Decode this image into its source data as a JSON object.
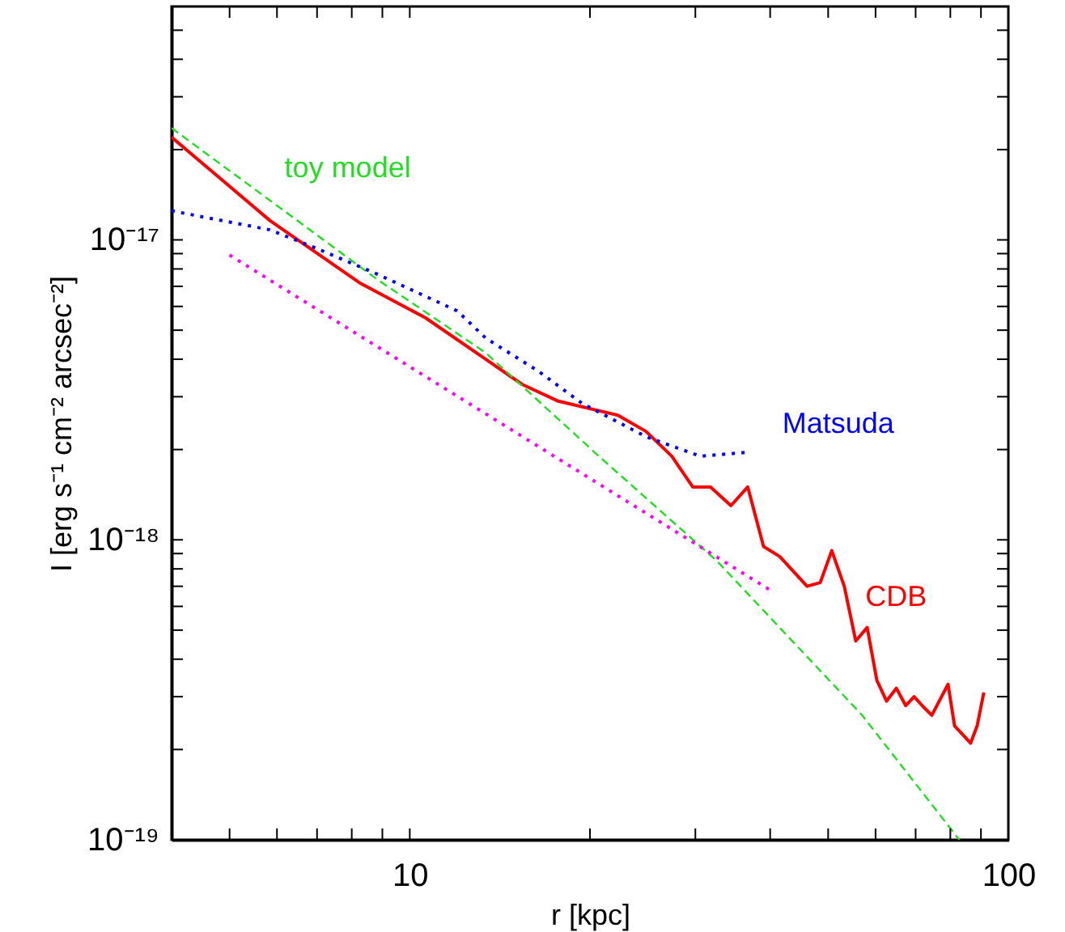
{
  "chart_data": {
    "type": "line",
    "xlabel": "r [kpc]",
    "ylabel": "I [erg s⁻¹ cm⁻² arcsec⁻²]",
    "log": "xy",
    "grid": false,
    "marker": "none",
    "xlim": [
      4,
      100
    ],
    "ylim": [
      1e-19,
      6e-17
    ],
    "xticks": [
      {
        "value": 4,
        "label": null
      },
      {
        "value": 5,
        "label": null
      },
      {
        "value": 6,
        "label": null
      },
      {
        "value": 7,
        "label": null
      },
      {
        "value": 8,
        "label": null
      },
      {
        "value": 9,
        "label": null
      },
      10,
      {
        "value": 20,
        "label": null
      },
      {
        "value": 30,
        "label": null
      },
      {
        "value": 40,
        "label": null
      },
      {
        "value": 50,
        "label": null
      },
      {
        "value": 60,
        "label": null
      },
      {
        "value": 70,
        "label": null
      },
      {
        "value": 80,
        "label": null
      },
      {
        "value": 90,
        "label": null
      },
      100
    ],
    "yticks": [
      {
        "value": 1e-19,
        "label": "10⁻¹⁹"
      },
      {
        "value": 2e-19,
        "label": null
      },
      {
        "value": 3e-19,
        "label": null
      },
      {
        "value": 4e-19,
        "label": null
      },
      {
        "value": 5e-19,
        "label": null
      },
      {
        "value": 6e-19,
        "label": null
      },
      {
        "value": 7e-19,
        "label": null
      },
      {
        "value": 8e-19,
        "label": null
      },
      {
        "value": 9e-19,
        "label": null
      },
      {
        "value": 1e-18,
        "label": "10⁻¹⁸"
      },
      {
        "value": 2e-18,
        "label": null
      },
      {
        "value": 3e-18,
        "label": null
      },
      {
        "value": 4e-18,
        "label": null
      },
      {
        "value": 5e-18,
        "label": null
      },
      {
        "value": 6e-18,
        "label": null
      },
      {
        "value": 7e-18,
        "label": null
      },
      {
        "value": 8e-18,
        "label": null
      },
      {
        "value": 9e-18,
        "label": null
      },
      {
        "value": 1e-17,
        "label": "10⁻¹⁷"
      },
      {
        "value": 2e-17,
        "label": null
      },
      {
        "value": 3e-17,
        "label": null
      },
      {
        "value": 4e-17,
        "label": null
      },
      {
        "value": 5e-17,
        "label": null
      }
    ],
    "series": [
      {
        "name": "CDB",
        "color": "#ff0000",
        "line_style": "solid",
        "x": [
          4,
          5.84,
          8.24,
          10.62,
          13.4,
          15.4,
          17.7,
          22.3,
          24.8,
          27.4,
          29.7,
          31.8,
          34.4,
          36.7,
          39.0,
          41.5,
          46.1,
          48.5,
          50.7,
          53.2,
          55.6,
          58.1,
          60.3,
          62.6,
          65.0,
          67.4,
          69.6,
          71.8,
          74.5,
          79.3,
          81.3,
          86.5,
          88.7,
          91.0
        ],
        "values": [
          2.2e-17,
          1.16e-17,
          7.2e-18,
          5.5e-18,
          4e-18,
          3.3e-18,
          2.9e-18,
          2.6e-18,
          2.3e-18,
          1.9e-18,
          1.5e-18,
          1.5e-18,
          1.3e-18,
          1.5e-18,
          9.5e-19,
          8.8e-19,
          7e-19,
          7.2e-19,
          9.2e-19,
          7e-19,
          4.6e-19,
          5.1e-19,
          3.4e-19,
          2.9e-19,
          3.2e-19,
          2.8e-19,
          3e-19,
          2.8e-19,
          2.6e-19,
          3.3e-19,
          2.4e-19,
          2.1e-19,
          2.4e-19,
          3.1e-19
        ]
      },
      {
        "name": "toy model",
        "color": "#22dd22",
        "line_style": "dashed",
        "x": [
          4,
          8.81,
          13.4,
          20.7,
          32.6,
          57.0,
          82.8
        ],
        "values": [
          2.36e-17,
          7.4e-18,
          4.2e-18,
          1.9e-18,
          8.5e-19,
          2.6e-19,
          1e-19
        ]
      },
      {
        "name": "Matsuda",
        "color": "#0000ff",
        "line_style": "dotted",
        "x": [
          4,
          5.84,
          6.87,
          8.81,
          12.0,
          13.4,
          16.4,
          19.4,
          24.9,
          30.6,
          36.9
        ],
        "values": [
          1.25e-17,
          1.08e-17,
          9.5e-18,
          7.7e-18,
          5.8e-18,
          4.7e-18,
          3.65e-18,
          2.85e-18,
          2.2e-18,
          1.9e-18,
          1.96e-18
        ]
      },
      {
        "color": "#ff00ff",
        "line_style": "dotted",
        "x": [
          5,
          40
        ],
        "values": [
          8.9e-18,
          6.8e-19
        ]
      }
    ]
  }
}
